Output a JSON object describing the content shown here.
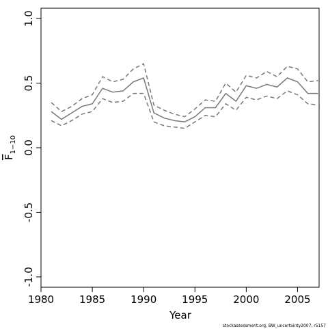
{
  "chart_data": {
    "type": "line",
    "xlabel": "Year",
    "ylabel": {
      "text": "F",
      "subscript": "1−10"
    },
    "footnote": "stockassessment.org, BW_uncertainty2007, r5157",
    "x": [
      1981,
      1982,
      1983,
      1984,
      1985,
      1986,
      1987,
      1988,
      1989,
      1990,
      1991,
      1992,
      1993,
      1994,
      1995,
      1996,
      1997,
      1998,
      1999,
      2000,
      2001,
      2002,
      2003,
      2004,
      2005,
      2006,
      2007
    ],
    "series": [
      {
        "color": "#777777",
        "style": "dashed",
        "values": [
          0.35,
          0.28,
          0.32,
          0.38,
          0.41,
          0.55,
          0.51,
          0.53,
          0.61,
          0.65,
          0.33,
          0.29,
          0.26,
          0.24,
          0.3,
          0.37,
          0.36,
          0.5,
          0.43,
          0.56,
          0.54,
          0.59,
          0.55,
          0.63,
          0.61,
          0.51,
          0.52
        ]
      },
      {
        "color": "#777777",
        "style": "solid",
        "values": [
          0.28,
          0.22,
          0.27,
          0.32,
          0.34,
          0.46,
          0.43,
          0.44,
          0.51,
          0.54,
          0.27,
          0.23,
          0.21,
          0.2,
          0.24,
          0.31,
          0.31,
          0.42,
          0.36,
          0.48,
          0.46,
          0.49,
          0.47,
          0.54,
          0.51,
          0.42,
          0.42
        ]
      },
      {
        "color": "#777777",
        "style": "dashed",
        "values": [
          0.21,
          0.17,
          0.21,
          0.26,
          0.28,
          0.38,
          0.35,
          0.36,
          0.42,
          0.42,
          0.2,
          0.17,
          0.16,
          0.15,
          0.2,
          0.25,
          0.24,
          0.34,
          0.29,
          0.39,
          0.37,
          0.4,
          0.38,
          0.44,
          0.41,
          0.34,
          0.33
        ]
      }
    ],
    "xlim": [
      1980,
      2007.1
    ],
    "xticks": [
      1980,
      1985,
      1990,
      1995,
      2000,
      2005
    ],
    "ylim": [
      -1.08,
      1.08
    ],
    "yticks": [
      {
        "value": -1,
        "label": "-1.0"
      },
      -0.5,
      {
        "value": 0,
        "label": "0.0"
      },
      0.5,
      {
        "value": 1,
        "label": "1.0"
      }
    ]
  }
}
